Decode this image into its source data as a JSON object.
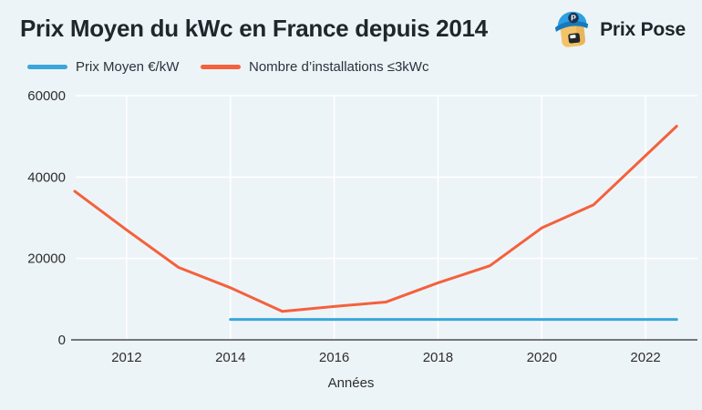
{
  "brand": {
    "name": "Prix Pose",
    "icon": "prixpose-mascot-icon"
  },
  "colors": {
    "background": "#edf4f8",
    "title_text": "#1e272c",
    "tick_text": "#2e2e2e",
    "gridline": "#ffffff",
    "axis_line": "#4d4d4d",
    "series_blue": "#3aa6db",
    "series_orange": "#f4613c",
    "logo_cap_blue": "#2d9fe2",
    "logo_brim_blue": "#1679bd",
    "logo_face_tan": "#f3c368"
  },
  "chart_data": {
    "type": "line",
    "title": "Prix Moyen du kWc en France depuis 2014",
    "xlabel": "Années",
    "ylabel": "",
    "xlim": [
      2011,
      2023
    ],
    "ylim": [
      0,
      60000
    ],
    "x_ticks": [
      2012,
      2014,
      2016,
      2018,
      2020,
      2022
    ],
    "y_ticks": [
      0,
      20000,
      40000,
      60000
    ],
    "grid": "on",
    "legend_position": "top-left",
    "series": [
      {
        "name": "Prix Moyen €/kW",
        "color": "#3aa6db",
        "x": [
          2014,
          2022.6
        ],
        "values": [
          5000,
          5000
        ]
      },
      {
        "name": "Nombre d’installations ≤3kWc",
        "color": "#f4613c",
        "x": [
          2011,
          2012,
          2013,
          2014,
          2015,
          2016,
          2017,
          2018,
          2019,
          2020,
          2021,
          2022.6
        ],
        "values": [
          36500,
          27000,
          17800,
          12800,
          7000,
          8200,
          9300,
          14000,
          18200,
          27500,
          33200,
          52500
        ]
      }
    ]
  }
}
